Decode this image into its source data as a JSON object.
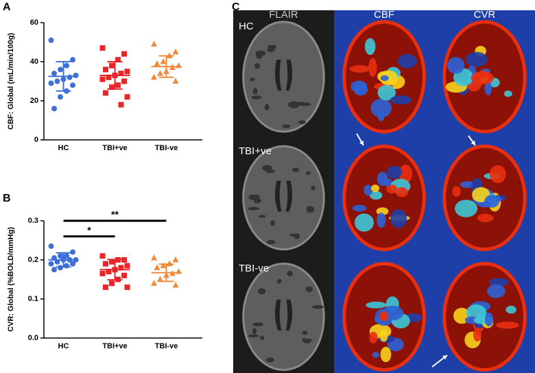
{
  "panel_labels": [
    "A",
    "B",
    "C"
  ],
  "images": {
    "columns": [
      "FLAIR",
      "CBF",
      "CVR"
    ],
    "rows": [
      "HC",
      "TBI+ve",
      "TBI-ve"
    ]
  },
  "chart_data": [
    {
      "type": "scatter",
      "ylabel": "CBF: Global (mL/min/100g)",
      "categories": [
        "HC",
        "TBI+ve",
        "TBI-ve"
      ],
      "ylim": [
        0,
        60
      ],
      "yticks": [
        0,
        20,
        40,
        60
      ],
      "series": [
        {
          "color": "#3d6fd9",
          "marker": "circle",
          "values": [
            51,
            41,
            38,
            36,
            34,
            33,
            32,
            31,
            30,
            29,
            28,
            25,
            22,
            16
          ],
          "mean": 32.5,
          "sd": 7.5
        },
        {
          "color": "#e8262a",
          "marker": "square",
          "values": [
            47,
            44,
            41,
            38,
            36,
            35,
            34,
            33,
            32,
            31,
            30,
            28,
            27,
            24,
            22,
            18
          ],
          "mean": 33,
          "sd": 7
        },
        {
          "color": "#f08a3c",
          "marker": "triangle",
          "values": [
            49,
            45,
            43,
            40,
            39,
            38,
            37,
            35,
            34,
            32,
            30
          ],
          "mean": 37.5,
          "sd": 5.5
        }
      ]
    },
    {
      "type": "scatter",
      "ylabel": "CVR: Global (%BOLD/mmHg)",
      "categories": [
        "HC",
        "TBI+ve",
        "TBI-ve"
      ],
      "ylim": [
        0,
        0.3
      ],
      "yticks": [
        {
          "value": 0,
          "label": "0.0"
        },
        0.1,
        0.2,
        0.3
      ],
      "series": [
        {
          "color": "#3d6fd9",
          "marker": "circle",
          "values": [
            0.235,
            0.22,
            0.21,
            0.21,
            0.205,
            0.2,
            0.2,
            0.2,
            0.195,
            0.19,
            0.19,
            0.185,
            0.18,
            0.175
          ],
          "mean": 0.2,
          "sd": 0.018
        },
        {
          "color": "#e8262a",
          "marker": "square",
          "values": [
            0.21,
            0.2,
            0.2,
            0.195,
            0.19,
            0.185,
            0.18,
            0.175,
            0.17,
            0.165,
            0.16,
            0.15,
            0.14,
            0.13,
            0.13
          ],
          "mean": 0.175,
          "sd": 0.026
        },
        {
          "color": "#f08a3c",
          "marker": "triangle",
          "values": [
            0.205,
            0.2,
            0.19,
            0.185,
            0.18,
            0.17,
            0.165,
            0.16,
            0.15,
            0.14,
            0.135
          ],
          "mean": 0.167,
          "sd": 0.022
        }
      ],
      "annotations": [
        {
          "text": "**",
          "from": 0,
          "to": 2,
          "y": 0.3
        },
        {
          "text": "*",
          "from": 0,
          "to": 1,
          "y": 0.26
        }
      ]
    }
  ]
}
